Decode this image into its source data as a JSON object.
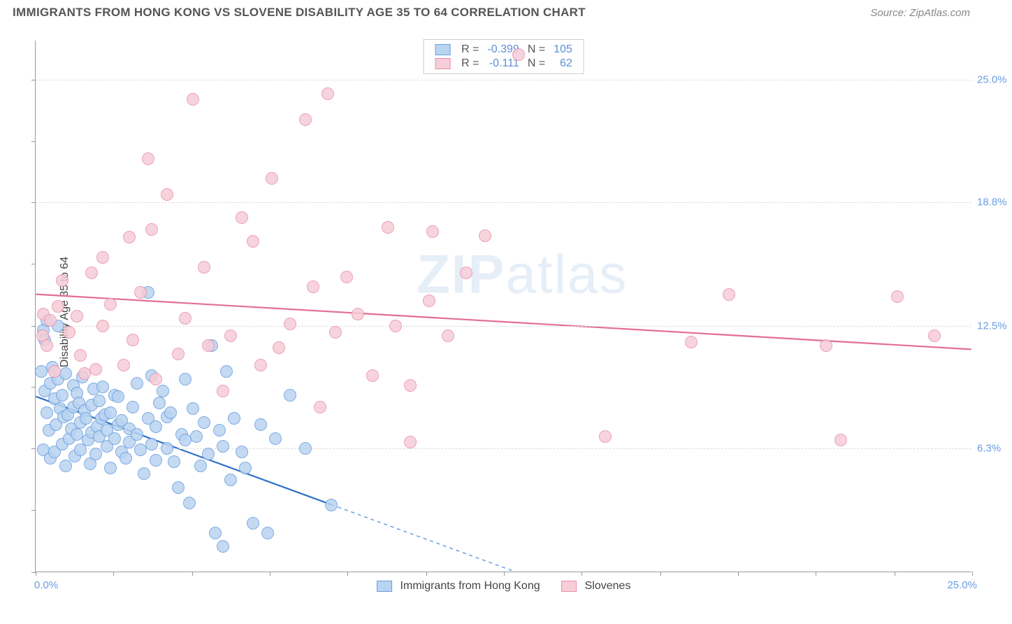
{
  "header": {
    "title": "IMMIGRANTS FROM HONG KONG VS SLOVENE DISABILITY AGE 35 TO 64 CORRELATION CHART",
    "source_prefix": "Source: ",
    "source_link": "ZipAtlas.com"
  },
  "chart": {
    "type": "scatter",
    "ylabel": "Disability Age 35 to 64",
    "xlim": [
      0,
      25
    ],
    "ylim": [
      0,
      27
    ],
    "xtick_label_left": "0.0%",
    "xtick_label_right": "25.0%",
    "yticks": [
      {
        "v": 6.3,
        "label": "6.3%"
      },
      {
        "v": 12.5,
        "label": "12.5%"
      },
      {
        "v": 18.8,
        "label": "18.8%"
      },
      {
        "v": 25.0,
        "label": "25.0%"
      }
    ],
    "xticks_minor": [
      0,
      2.08,
      4.17,
      6.25,
      8.33,
      10.42,
      12.5,
      14.58,
      16.67,
      18.75,
      20.83,
      22.92,
      25
    ],
    "yticks_minor": [
      0,
      3.15,
      6.3,
      9.4,
      12.5,
      15.65,
      18.8,
      21.9,
      25.0
    ],
    "background_color": "#ffffff",
    "grid_color": "#dddddd",
    "axis_color": "#999999",
    "watermark": "ZIPatlas",
    "series": [
      {
        "name": "Immigrants from Hong Kong",
        "fill": "#b9d4f0",
        "stroke": "#6a9de0",
        "R": "-0.399",
        "N": "105",
        "trend": {
          "x1": 0,
          "y1": 8.9,
          "x2": 7.9,
          "y2": 3.4,
          "color": "#2f6fc9",
          "width": 2.2
        },
        "trend_ext": {
          "x1": 7.9,
          "y1": 3.4,
          "x2": 12.8,
          "y2": 0,
          "color": "#6a9de0",
          "dash": "5,5",
          "width": 1.5
        },
        "points": [
          [
            0.15,
            10.2
          ],
          [
            0.2,
            12.3
          ],
          [
            0.2,
            6.2
          ],
          [
            0.25,
            9.2
          ],
          [
            0.25,
            11.8
          ],
          [
            0.3,
            12.8
          ],
          [
            0.3,
            8.1
          ],
          [
            0.35,
            7.2
          ],
          [
            0.4,
            5.8
          ],
          [
            0.4,
            9.6
          ],
          [
            0.45,
            10.4
          ],
          [
            0.5,
            8.8
          ],
          [
            0.5,
            6.1
          ],
          [
            0.55,
            7.5
          ],
          [
            0.6,
            9.8
          ],
          [
            0.6,
            12.5
          ],
          [
            0.65,
            8.3
          ],
          [
            0.7,
            6.5
          ],
          [
            0.7,
            9.0
          ],
          [
            0.75,
            7.9
          ],
          [
            0.8,
            5.4
          ],
          [
            0.8,
            10.1
          ],
          [
            0.85,
            8.0
          ],
          [
            0.9,
            6.8
          ],
          [
            0.95,
            7.3
          ],
          [
            1.0,
            8.4
          ],
          [
            1.0,
            9.5
          ],
          [
            1.05,
            5.9
          ],
          [
            1.1,
            9.1
          ],
          [
            1.1,
            7.0
          ],
          [
            1.15,
            8.6
          ],
          [
            1.2,
            6.2
          ],
          [
            1.2,
            7.6
          ],
          [
            1.25,
            9.9
          ],
          [
            1.3,
            8.2
          ],
          [
            1.35,
            7.8
          ],
          [
            1.4,
            6.7
          ],
          [
            1.45,
            5.5
          ],
          [
            1.5,
            7.1
          ],
          [
            1.5,
            8.5
          ],
          [
            1.55,
            9.3
          ],
          [
            1.6,
            6.0
          ],
          [
            1.65,
            7.4
          ],
          [
            1.7,
            8.7
          ],
          [
            1.7,
            6.9
          ],
          [
            1.75,
            7.8
          ],
          [
            1.8,
            9.4
          ],
          [
            1.85,
            8.0
          ],
          [
            1.9,
            6.4
          ],
          [
            1.9,
            7.2
          ],
          [
            2.0,
            8.1
          ],
          [
            2.0,
            5.3
          ],
          [
            2.1,
            6.8
          ],
          [
            2.1,
            9.0
          ],
          [
            2.2,
            7.5
          ],
          [
            2.2,
            8.9
          ],
          [
            2.3,
            6.1
          ],
          [
            2.3,
            7.7
          ],
          [
            2.4,
            5.8
          ],
          [
            2.5,
            7.3
          ],
          [
            2.5,
            6.6
          ],
          [
            2.6,
            8.4
          ],
          [
            2.7,
            7.0
          ],
          [
            2.7,
            9.6
          ],
          [
            2.8,
            6.2
          ],
          [
            2.9,
            5.0
          ],
          [
            3.0,
            7.8
          ],
          [
            3.0,
            14.2
          ],
          [
            3.1,
            6.5
          ],
          [
            3.1,
            10.0
          ],
          [
            3.2,
            5.7
          ],
          [
            3.2,
            7.4
          ],
          [
            3.3,
            8.6
          ],
          [
            3.4,
            9.2
          ],
          [
            3.5,
            6.3
          ],
          [
            3.5,
            7.9
          ],
          [
            3.6,
            8.1
          ],
          [
            3.7,
            5.6
          ],
          [
            3.8,
            4.3
          ],
          [
            3.9,
            7.0
          ],
          [
            4.0,
            6.7
          ],
          [
            4.0,
            9.8
          ],
          [
            4.1,
            3.5
          ],
          [
            4.2,
            8.3
          ],
          [
            4.3,
            6.9
          ],
          [
            4.4,
            5.4
          ],
          [
            4.5,
            7.6
          ],
          [
            4.6,
            6.0
          ],
          [
            4.7,
            11.5
          ],
          [
            4.8,
            2.0
          ],
          [
            4.9,
            7.2
          ],
          [
            5.0,
            6.4
          ],
          [
            5.0,
            1.3
          ],
          [
            5.1,
            10.2
          ],
          [
            5.2,
            4.7
          ],
          [
            5.3,
            7.8
          ],
          [
            5.5,
            6.1
          ],
          [
            5.6,
            5.3
          ],
          [
            5.8,
            2.5
          ],
          [
            6.0,
            7.5
          ],
          [
            6.2,
            2.0
          ],
          [
            6.4,
            6.8
          ],
          [
            6.8,
            9.0
          ],
          [
            7.2,
            6.3
          ],
          [
            7.9,
            3.4
          ]
        ]
      },
      {
        "name": "Slovenes",
        "fill": "#f6cdd8",
        "stroke": "#e890aa",
        "R": "-0.111",
        "N": "62",
        "trend": {
          "x1": 0,
          "y1": 14.1,
          "x2": 25,
          "y2": 11.3,
          "color": "#e36f93",
          "width": 2.2
        },
        "points": [
          [
            0.18,
            12.0
          ],
          [
            0.2,
            13.1
          ],
          [
            0.3,
            11.5
          ],
          [
            0.4,
            12.8
          ],
          [
            0.5,
            10.2
          ],
          [
            0.6,
            13.5
          ],
          [
            0.7,
            14.8
          ],
          [
            0.9,
            12.2
          ],
          [
            1.1,
            13.0
          ],
          [
            1.2,
            11.0
          ],
          [
            1.3,
            10.1
          ],
          [
            1.5,
            15.2
          ],
          [
            1.6,
            10.3
          ],
          [
            1.8,
            12.5
          ],
          [
            1.8,
            16.0
          ],
          [
            2.0,
            13.6
          ],
          [
            2.35,
            10.5
          ],
          [
            2.5,
            17.0
          ],
          [
            2.6,
            11.8
          ],
          [
            2.8,
            14.2
          ],
          [
            3.0,
            21.0
          ],
          [
            3.1,
            17.4
          ],
          [
            3.2,
            9.8
          ],
          [
            3.5,
            19.2
          ],
          [
            3.8,
            11.1
          ],
          [
            4.0,
            12.9
          ],
          [
            4.2,
            24.0
          ],
          [
            4.5,
            15.5
          ],
          [
            4.6,
            11.5
          ],
          [
            5.0,
            9.2
          ],
          [
            5.2,
            12.0
          ],
          [
            5.5,
            18.0
          ],
          [
            5.8,
            16.8
          ],
          [
            6.0,
            10.5
          ],
          [
            6.3,
            20.0
          ],
          [
            6.5,
            11.4
          ],
          [
            6.8,
            12.6
          ],
          [
            7.2,
            23.0
          ],
          [
            7.4,
            14.5
          ],
          [
            7.6,
            8.4
          ],
          [
            7.8,
            24.3
          ],
          [
            8.0,
            12.2
          ],
          [
            8.3,
            15.0
          ],
          [
            8.6,
            13.1
          ],
          [
            9.0,
            10.0
          ],
          [
            9.4,
            17.5
          ],
          [
            9.6,
            12.5
          ],
          [
            10.0,
            9.5
          ],
          [
            10.0,
            6.6
          ],
          [
            10.5,
            13.8
          ],
          [
            10.6,
            17.3
          ],
          [
            11.0,
            12.0
          ],
          [
            11.5,
            15.2
          ],
          [
            12.0,
            17.1
          ],
          [
            12.9,
            26.3
          ],
          [
            15.2,
            6.9
          ],
          [
            17.5,
            11.7
          ],
          [
            18.5,
            14.1
          ],
          [
            21.1,
            11.5
          ],
          [
            21.5,
            6.7
          ],
          [
            23.0,
            14.0
          ],
          [
            24.0,
            12.0
          ]
        ]
      }
    ],
    "legend_top": {
      "rows": [
        {
          "swatch_fill": "#b9d4f0",
          "swatch_stroke": "#6a9de0",
          "r_label": "R =",
          "r_val": "-0.399",
          "n_label": "N =",
          "n_val": "105"
        },
        {
          "swatch_fill": "#f6cdd8",
          "swatch_stroke": "#e890aa",
          "r_label": "R =",
          "r_val": "-0.111",
          "n_label": "N =",
          "n_val": "62"
        }
      ]
    },
    "legend_bottom": [
      {
        "swatch_fill": "#b9d4f0",
        "swatch_stroke": "#6a9de0",
        "label": "Immigrants from Hong Kong"
      },
      {
        "swatch_fill": "#f6cdd8",
        "swatch_stroke": "#e890aa",
        "label": "Slovenes"
      }
    ]
  }
}
